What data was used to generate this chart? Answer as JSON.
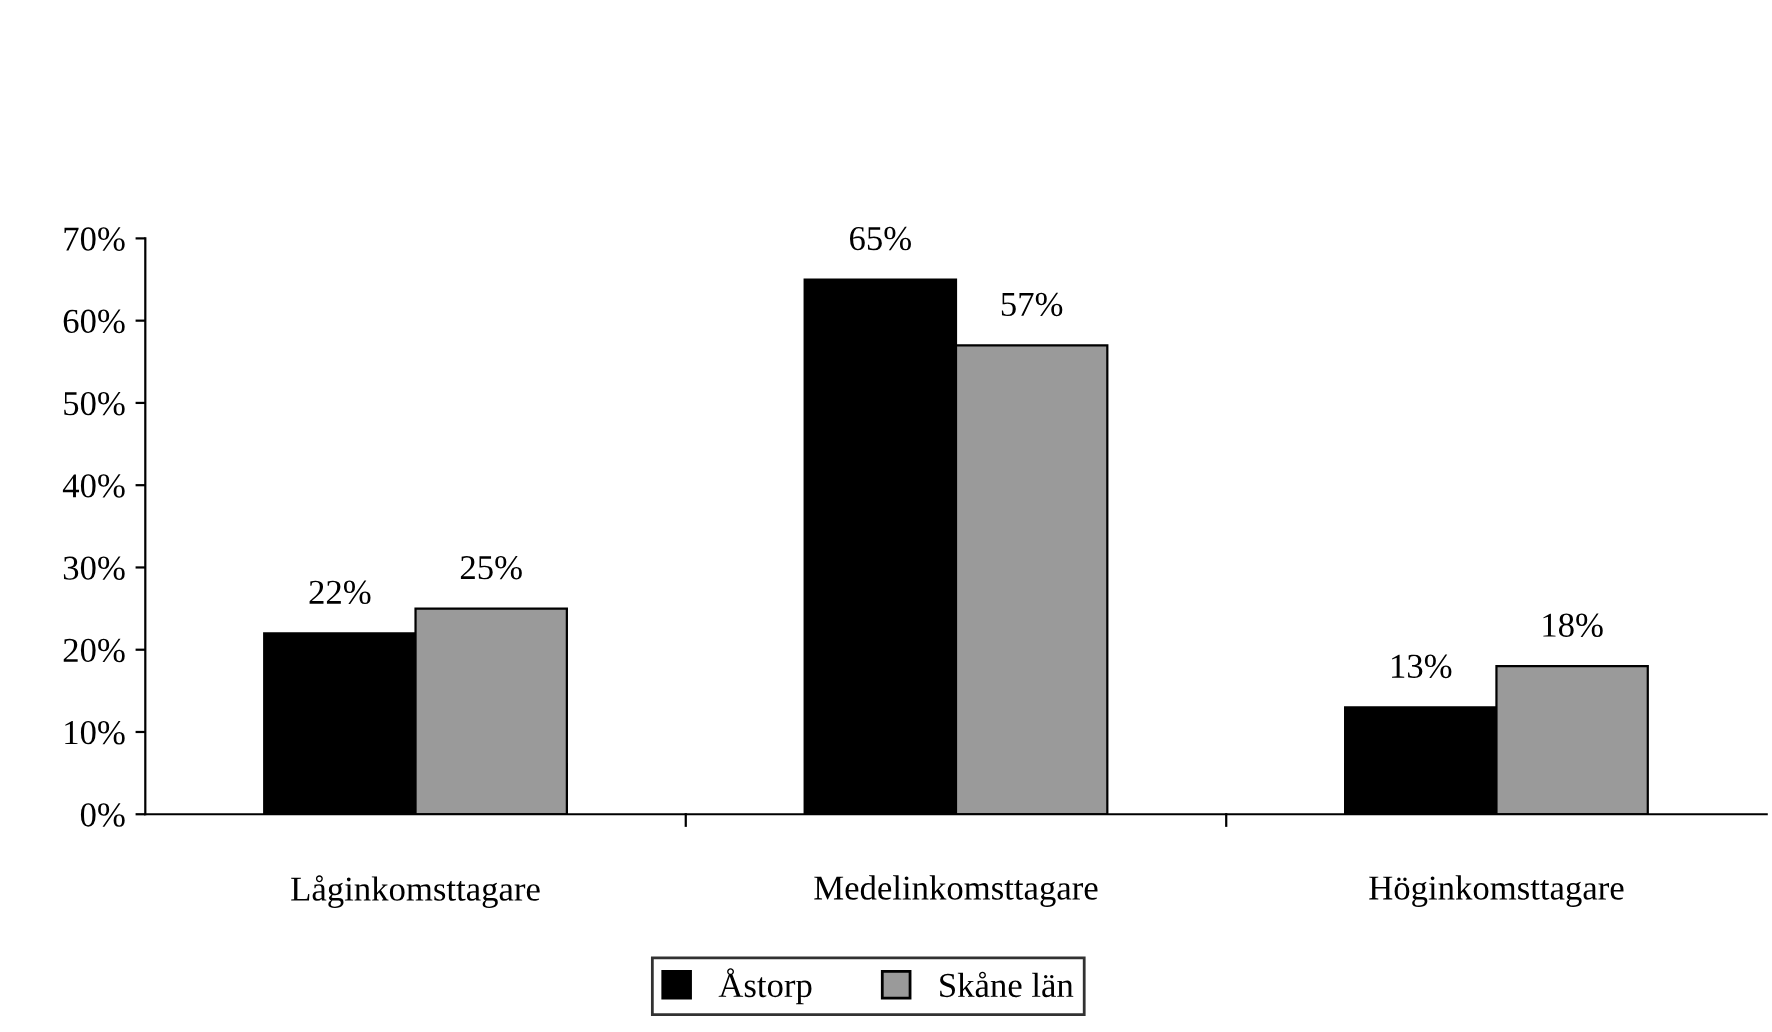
{
  "chart_data": {
    "type": "bar",
    "categories": [
      "Låginkomsttagare",
      "Medelinkomsttagare",
      "Höginkomsttagare"
    ],
    "series": [
      {
        "name": "Åstorp",
        "color": "#000000",
        "values": [
          22,
          65,
          13
        ],
        "value_labels": [
          "22%",
          "65%",
          "13%"
        ]
      },
      {
        "name": "Skåne län",
        "color": "#9a9a9a",
        "values": [
          25,
          57,
          18
        ],
        "value_labels": [
          "25%",
          "57%",
          "18%"
        ]
      }
    ],
    "ylim": [
      0,
      70
    ],
    "yticks": [
      {
        "value": 0,
        "label": "0%"
      },
      {
        "value": 10,
        "label": "10%"
      },
      {
        "value": 20,
        "label": "20%"
      },
      {
        "value": 30,
        "label": "30%"
      },
      {
        "value": 40,
        "label": "40%"
      },
      {
        "value": 50,
        "label": "50%"
      },
      {
        "value": 60,
        "label": "60%"
      },
      {
        "value": 70,
        "label": "70%"
      }
    ],
    "grid": false,
    "legend": "bottom"
  }
}
